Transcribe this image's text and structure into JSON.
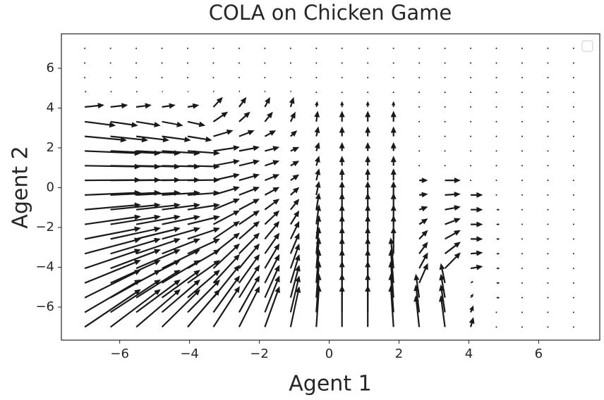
{
  "chart_data": {
    "type": "quiver",
    "title": "COLA on Chicken Game",
    "xlabel": "Agent 1",
    "ylabel": "Agent 2",
    "color": "#1a1a1a",
    "xlim": [
      -7.67,
      7.75
    ],
    "ylim": [
      -7.66,
      7.73
    ],
    "xticks": [
      {
        "value": -6,
        "label": "−6"
      },
      {
        "value": -4,
        "label": "−4"
      },
      {
        "value": -2,
        "label": "−2"
      },
      0,
      2,
      4,
      6
    ],
    "yticks": [
      {
        "value": -6,
        "label": "−6"
      },
      {
        "value": -4,
        "label": "−4"
      },
      {
        "value": -2,
        "label": "−2"
      },
      0,
      2,
      4,
      6
    ],
    "x": [
      -7,
      -6.263,
      -5.526,
      -4.789,
      -4.053,
      -3.316,
      -2.579,
      -1.842,
      -1.105,
      -0.368,
      0.368,
      1.105,
      1.842,
      2.579,
      3.316,
      4.053,
      4.789,
      5.526,
      6.263,
      7
    ],
    "y": [
      -7,
      -6.263,
      -5.526,
      -4.789,
      -4.053,
      -3.316,
      -2.579,
      -1.842,
      -1.105,
      -0.368,
      0.368,
      1.105,
      1.842,
      2.579,
      3.316,
      4.053,
      4.789,
      5.526,
      6.263,
      7
    ],
    "u": [
      [
        1.61,
        1.44,
        1.27,
        1.1,
        0.93,
        0.76,
        0.59,
        0.42,
        0.25,
        0.08,
        0,
        0,
        -0.08,
        -0.1,
        -0.12,
        0.08,
        0,
        0,
        0,
        0
      ],
      [
        1.61,
        1.44,
        1.27,
        1.1,
        0.93,
        0.76,
        0.59,
        0.42,
        0.25,
        0.08,
        0,
        0,
        -0.08,
        -0.1,
        -0.12,
        0.08,
        0,
        0,
        0,
        0
      ],
      [
        1.61,
        1.44,
        1.27,
        1.1,
        0.93,
        0.76,
        0.59,
        0.42,
        0.25,
        0.08,
        0,
        0,
        -0.08,
        -0.1,
        -0.12,
        0.08,
        0.1,
        0,
        0,
        0
      ],
      [
        1.61,
        1.44,
        1.27,
        1.1,
        0.93,
        0.76,
        0.59,
        0.42,
        0.25,
        0.08,
        0,
        0,
        -0.08,
        0.25,
        -0.12,
        0.08,
        0.1,
        0,
        0,
        0
      ],
      [
        1.61,
        1.44,
        1.27,
        1.1,
        0.93,
        0.76,
        0.59,
        0.42,
        0.25,
        0.08,
        0,
        0,
        -0.08,
        0.25,
        0.45,
        0.35,
        0.1,
        0,
        0,
        0
      ],
      [
        1.61,
        1.44,
        1.27,
        1.1,
        0.93,
        0.76,
        0.59,
        0.42,
        0.25,
        0.08,
        0,
        0,
        0,
        0.25,
        0.45,
        0.35,
        0.1,
        0,
        0,
        0
      ],
      [
        1.61,
        1.44,
        1.27,
        1.1,
        0.93,
        0.76,
        0.59,
        0.42,
        0.25,
        0.08,
        0,
        0,
        0,
        0.25,
        0.45,
        0.35,
        0.1,
        0,
        0,
        0
      ],
      [
        1.61,
        1.44,
        1.27,
        1.1,
        0.93,
        0.76,
        0.59,
        0.42,
        0.25,
        0.08,
        0,
        0,
        0,
        0.25,
        0.45,
        0.35,
        0.1,
        0,
        0,
        0
      ],
      [
        1.61,
        1.44,
        1.27,
        1.1,
        0.93,
        0.76,
        0.59,
        0.42,
        0.25,
        0.08,
        0,
        0,
        0,
        0.25,
        0.45,
        0.35,
        0.1,
        0,
        0,
        0
      ],
      [
        1.61,
        1.44,
        1.27,
        1.1,
        0.93,
        0.76,
        0.59,
        0.42,
        0.25,
        0.08,
        0,
        0,
        0,
        0.25,
        0.45,
        0.35,
        0,
        0,
        0,
        0
      ],
      [
        1.61,
        1.44,
        1.27,
        1.1,
        0.93,
        0.76,
        0.59,
        0.42,
        0.25,
        0.08,
        0,
        0,
        0,
        0.25,
        0.45,
        0,
        0,
        0,
        0,
        0
      ],
      [
        1.61,
        1.44,
        1.27,
        1.1,
        0.93,
        0.76,
        0.59,
        0.42,
        0.25,
        0.08,
        0,
        0,
        0,
        0,
        0,
        0,
        0,
        0,
        0,
        0
      ],
      [
        1.61,
        1.44,
        1.27,
        1.1,
        0.93,
        0.76,
        0.59,
        0.42,
        0.25,
        0.08,
        0,
        0,
        0,
        0,
        0,
        0,
        0,
        0,
        0,
        0
      ],
      [
        1.21,
        1.08,
        0.95,
        0.83,
        0.7,
        0.57,
        0.44,
        0.32,
        0.19,
        0.06,
        0,
        0,
        0,
        0,
        0,
        0,
        0,
        0,
        0,
        0
      ],
      [
        0.89,
        0.79,
        0.7,
        0.61,
        0.51,
        0.42,
        0.32,
        0.23,
        0.14,
        0.04,
        0,
        0,
        0,
        0,
        0,
        0,
        0,
        0,
        0,
        0
      ],
      [
        0.56,
        0.5,
        0.44,
        0.39,
        0.33,
        0.27,
        0.21,
        0.15,
        0.09,
        0.03,
        0,
        0,
        0,
        0,
        0,
        0,
        0,
        0,
        0,
        0
      ],
      [
        0.05,
        0.04,
        0.04,
        0.03,
        0.03,
        0.02,
        0.02,
        0.01,
        0.01,
        0,
        0,
        0,
        0,
        0,
        0,
        0,
        0,
        0,
        0,
        0
      ],
      [
        0,
        0,
        0,
        0,
        0,
        0,
        0,
        0,
        0,
        0,
        0,
        0,
        0,
        0,
        0,
        0,
        0,
        0,
        0,
        0
      ],
      [
        0,
        0,
        0,
        0,
        0,
        0,
        0,
        0,
        0,
        0,
        0,
        0,
        0,
        0,
        0,
        0,
        0,
        0,
        0,
        0
      ],
      [
        0,
        0,
        0,
        0,
        0,
        0,
        0,
        0,
        0,
        0,
        0,
        0,
        0,
        0,
        0,
        0,
        0,
        0,
        0,
        0
      ]
    ],
    "v": [
      [
        1.9,
        1.9,
        1.9,
        1.9,
        1.9,
        2.05,
        2.05,
        2.05,
        2.05,
        2.1,
        2.1,
        2.1,
        2.1,
        1.6,
        1.6,
        0.5,
        0.05,
        0,
        0,
        0
      ],
      [
        1.65,
        1.65,
        1.65,
        1.65,
        1.65,
        1.85,
        1.85,
        1.85,
        1.85,
        1.95,
        1.95,
        1.95,
        1.95,
        1.4,
        1.4,
        0.35,
        0,
        0,
        0,
        0
      ],
      [
        1.4,
        1.4,
        1.4,
        1.4,
        1.4,
        1.65,
        1.65,
        1.65,
        1.65,
        1.85,
        1.85,
        1.85,
        1.85,
        1.2,
        1.2,
        0.2,
        0,
        0,
        0,
        0
      ],
      [
        1.15,
        1.15,
        1.15,
        1.15,
        1.15,
        1.45,
        1.45,
        1.45,
        1.45,
        1.7,
        1.7,
        1.7,
        1.7,
        1.0,
        1.0,
        0.1,
        0,
        0,
        0,
        0
      ],
      [
        0.95,
        0.95,
        0.95,
        0.95,
        0.95,
        1.25,
        1.25,
        1.25,
        1.25,
        1.55,
        1.55,
        1.55,
        1.55,
        0.8,
        0.8,
        0.1,
        0,
        0,
        0,
        0
      ],
      [
        0.75,
        0.75,
        0.75,
        0.75,
        0.75,
        1.05,
        1.05,
        1.05,
        1.05,
        1.35,
        1.35,
        1.35,
        1.35,
        0.6,
        0.6,
        0.05,
        0,
        0,
        0,
        0
      ],
      [
        0.55,
        0.55,
        0.55,
        0.55,
        0.55,
        0.9,
        0.9,
        0.9,
        0.9,
        1.2,
        1.2,
        1.2,
        1.2,
        0.45,
        0.45,
        0,
        0,
        0,
        0,
        0
      ],
      [
        0.4,
        0.4,
        0.4,
        0.4,
        0.4,
        0.7,
        0.7,
        0.7,
        0.7,
        1.0,
        1.0,
        1.0,
        1.0,
        0.3,
        0.3,
        0,
        0,
        0,
        0,
        0
      ],
      [
        0.25,
        0.25,
        0.25,
        0.25,
        0.25,
        0.55,
        0.55,
        0.55,
        0.55,
        0.85,
        0.85,
        0.85,
        0.85,
        0.15,
        0.15,
        0,
        0,
        0,
        0,
        0
      ],
      [
        0.12,
        0.12,
        0.12,
        0.12,
        0.12,
        0.4,
        0.4,
        0.4,
        0.4,
        0.7,
        0.7,
        0.7,
        0.7,
        0.05,
        0.05,
        0,
        0,
        0,
        0,
        0
      ],
      [
        0.02,
        0.02,
        0.02,
        0.02,
        0.02,
        0.3,
        0.3,
        0.3,
        0.3,
        0.6,
        0.6,
        0.6,
        0.6,
        0,
        0,
        0,
        0,
        0,
        0,
        0
      ],
      [
        -0.05,
        -0.05,
        -0.05,
        -0.05,
        -0.05,
        0.25,
        0.25,
        0.25,
        0.25,
        0.5,
        0.5,
        0.5,
        0.5,
        0,
        0,
        0,
        0,
        0,
        0,
        0
      ],
      [
        -0.12,
        -0.12,
        -0.12,
        -0.12,
        -0.12,
        0.2,
        0.2,
        0.2,
        0.2,
        0.45,
        0.45,
        0.45,
        0.45,
        0,
        0,
        0,
        0,
        0,
        0,
        0
      ],
      [
        -0.2,
        -0.2,
        -0.2,
        -0.2,
        -0.2,
        0.3,
        0.3,
        0.3,
        0.3,
        0.5,
        0.5,
        0.5,
        0.5,
        0,
        0,
        0,
        0,
        0,
        0,
        0
      ],
      [
        -0.2,
        -0.2,
        -0.2,
        -0.2,
        -0.2,
        0.5,
        0.5,
        0.5,
        0.5,
        0.55,
        0.55,
        0.55,
        0.55,
        0,
        0,
        0,
        0,
        0,
        0,
        0
      ],
      [
        0.1,
        0.1,
        0.1,
        0.1,
        0.1,
        0.5,
        0.5,
        0.5,
        0.5,
        0.3,
        0.3,
        0.3,
        0.3,
        0,
        0,
        0,
        0,
        0,
        0,
        0
      ],
      [
        0.08,
        0.08,
        0.08,
        0.08,
        0.08,
        0.1,
        0.1,
        0.1,
        0.1,
        0.02,
        0.02,
        0.02,
        0.02,
        0,
        0,
        0,
        0,
        0,
        0,
        0
      ],
      [
        0,
        0,
        0,
        0,
        0,
        0,
        0,
        0,
        0,
        0,
        0,
        0,
        0,
        0,
        0,
        0,
        0,
        0,
        0,
        0
      ],
      [
        0,
        0,
        0,
        0,
        0,
        0,
        0,
        0,
        0,
        0,
        0,
        0,
        0,
        0,
        0,
        0,
        0,
        0,
        0,
        0
      ],
      [
        0,
        0,
        0,
        0,
        0,
        0,
        0,
        0,
        0,
        0,
        0,
        0,
        0,
        0,
        0,
        0,
        0,
        0,
        0,
        0
      ]
    ]
  }
}
